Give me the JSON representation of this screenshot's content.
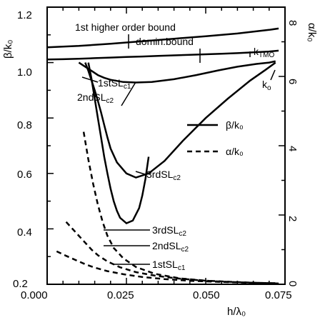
{
  "chart_data": {
    "type": "line",
    "title": "",
    "xlabel": "h/λ₀",
    "ylabel_left": "β/k₀",
    "ylabel_right": "α/k₀",
    "xlim": [
      0.0,
      0.075
    ],
    "ylim_left": [
      0.2,
      1.2
    ],
    "ylim_right": [
      0,
      8
    ],
    "x_ticks": [
      "0.000",
      "0.025",
      "0.050",
      "0.075"
    ],
    "y_left_ticks": [
      "0.2",
      "0.4",
      "0.6",
      "0.8",
      "1.0",
      "1.2"
    ],
    "y_right_ticks": [
      "0",
      "2",
      "4",
      "6",
      "8"
    ],
    "grid": false,
    "legend": {
      "placement": "center-right",
      "entries": [
        {
          "label": "β/k₀",
          "style": "solid"
        },
        {
          "label": "α/k₀",
          "style": "dashed"
        }
      ]
    },
    "annotations": {
      "first_higher_order": "1st higher order bound",
      "domin_bound": "domin.bound",
      "ktmo": "k",
      "ktmo_sub": "TMO",
      "k0": "k",
      "k0_sub": "o",
      "first_sl_c1": "1stSL",
      "first_sl_c1_sub": "c1",
      "second_sl_c2": "2ndSL",
      "second_sl_c2_sub": "c2",
      "third_sl_c2": "3rdSL",
      "third_sl_c2_sub": "c2",
      "alpha_third": "3rdSL",
      "alpha_third_sub": "c2",
      "alpha_second": "2ndSL",
      "alpha_second_sub": "c2",
      "alpha_first": "1stSL",
      "alpha_first_sub": "c1"
    },
    "series": [
      {
        "axis": "left",
        "style": "solid",
        "x": [
          0.0,
          0.005,
          0.01,
          0.015,
          0.02,
          0.025,
          0.03,
          0.035,
          0.04,
          0.045,
          0.05,
          0.055,
          0.06,
          0.065,
          0.07,
          0.073
        ],
        "y": [
          1.011,
          1.012,
          1.014,
          1.016,
          1.018,
          1.02,
          1.022,
          1.024,
          1.026,
          1.028,
          1.03,
          1.032,
          1.034,
          1.037,
          1.04,
          1.043
        ]
      },
      {
        "axis": "left",
        "style": "solid",
        "x": [
          0.0,
          0.01,
          0.02,
          0.03,
          0.04,
          0.05,
          0.06,
          0.07,
          0.073
        ],
        "y": [
          1.055,
          1.06,
          1.068,
          1.077,
          1.086,
          1.095,
          1.105,
          1.118,
          1.123
        ]
      },
      {
        "axis": "left",
        "style": "solid",
        "x": [
          0.01,
          0.012,
          0.014,
          0.016,
          0.018,
          0.02,
          0.024,
          0.028,
          0.033,
          0.04,
          0.047,
          0.054,
          0.06,
          0.066,
          0.07,
          0.072
        ],
        "y": [
          1.0,
          0.985,
          0.97,
          0.955,
          0.945,
          0.938,
          0.93,
          0.928,
          0.93,
          0.94,
          0.955,
          0.972,
          0.985,
          0.995,
          1.0,
          1.005
        ]
      },
      {
        "axis": "left",
        "style": "solid",
        "x": [
          0.012,
          0.013,
          0.014,
          0.015,
          0.016,
          0.017,
          0.018,
          0.019,
          0.02,
          0.022,
          0.025,
          0.028,
          0.032,
          0.037,
          0.043,
          0.05,
          0.057,
          0.064,
          0.069,
          0.072
        ],
        "y": [
          1.0,
          0.97,
          0.935,
          0.9,
          0.862,
          0.82,
          0.775,
          0.73,
          0.69,
          0.64,
          0.6,
          0.585,
          0.6,
          0.645,
          0.72,
          0.8,
          0.87,
          0.935,
          0.975,
          1.0
        ]
      },
      {
        "axis": "left",
        "style": "solid",
        "x": [
          0.013,
          0.014,
          0.015,
          0.016,
          0.017,
          0.018,
          0.019,
          0.02,
          0.021,
          0.022,
          0.023,
          0.025,
          0.027,
          0.029,
          0.03,
          0.031,
          0.032
        ],
        "y": [
          1.0,
          0.94,
          0.87,
          0.8,
          0.73,
          0.66,
          0.6,
          0.545,
          0.5,
          0.465,
          0.44,
          0.42,
          0.43,
          0.475,
          0.52,
          0.58,
          0.66
        ]
      },
      {
        "axis": "right",
        "style": "dashed",
        "x": [
          0.0115,
          0.013,
          0.0145,
          0.016,
          0.0175,
          0.019,
          0.021,
          0.024,
          0.028,
          0.034,
          0.042,
          0.052,
          0.062,
          0.07,
          0.073
        ],
        "y": [
          4.4,
          3.6,
          2.9,
          2.3,
          1.8,
          1.4,
          1.05,
          0.75,
          0.5,
          0.3,
          0.17,
          0.09,
          0.05,
          0.03,
          0.02
        ]
      },
      {
        "axis": "right",
        "style": "dashed",
        "x": [
          0.006,
          0.008,
          0.01,
          0.012,
          0.014,
          0.016,
          0.019,
          0.023,
          0.028,
          0.034,
          0.041,
          0.049,
          0.058,
          0.067,
          0.073
        ],
        "y": [
          1.8,
          1.6,
          1.4,
          1.2,
          1.0,
          0.84,
          0.66,
          0.49,
          0.35,
          0.25,
          0.17,
          0.11,
          0.07,
          0.04,
          0.03
        ]
      },
      {
        "axis": "right",
        "style": "dashed",
        "x": [
          0.003,
          0.006,
          0.009,
          0.012,
          0.015,
          0.019,
          0.024,
          0.03,
          0.037,
          0.045,
          0.054,
          0.063,
          0.07,
          0.073
        ],
        "y": [
          0.95,
          0.82,
          0.7,
          0.58,
          0.48,
          0.38,
          0.29,
          0.21,
          0.15,
          0.1,
          0.07,
          0.05,
          0.03,
          0.02
        ]
      }
    ]
  }
}
